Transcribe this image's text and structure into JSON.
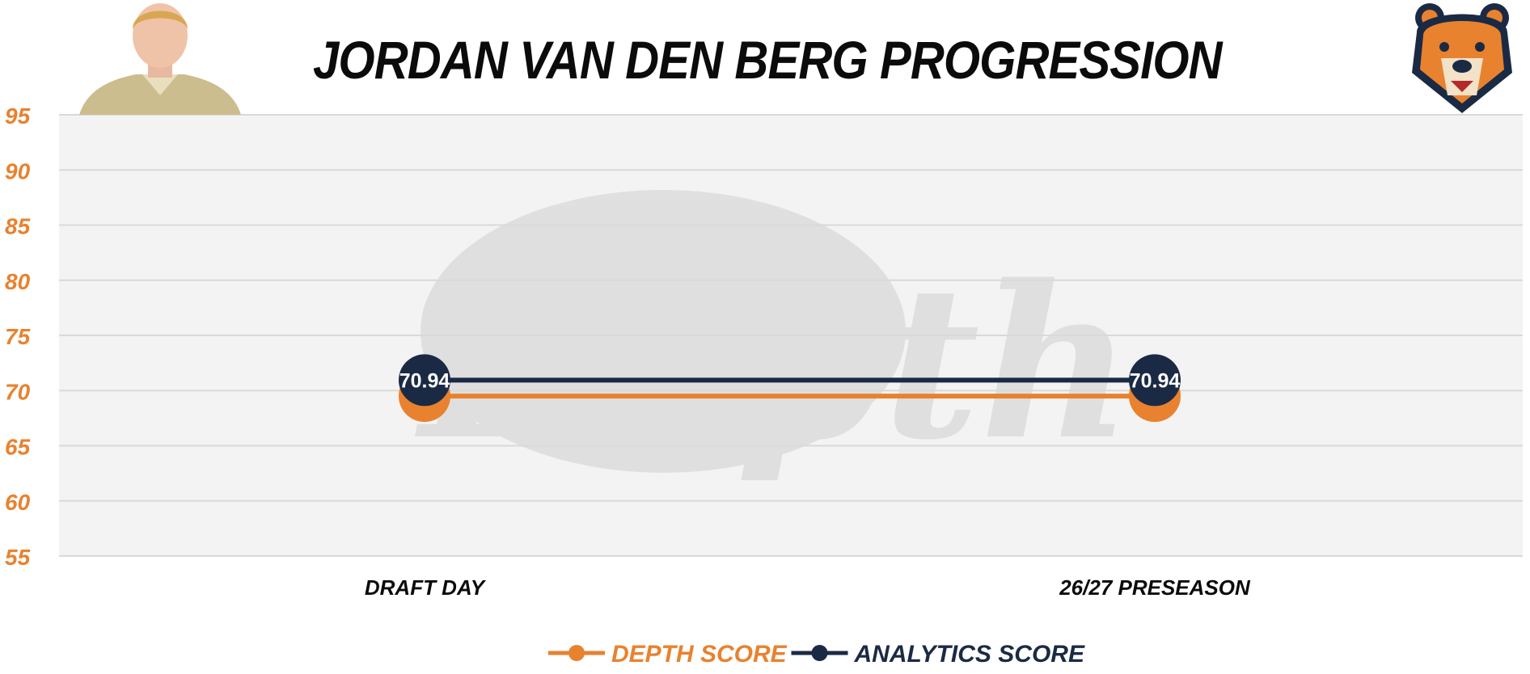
{
  "header": {
    "title": "JORDAN VAN DEN BERG PROGRESSION",
    "player_photo_icon": "player-headshot",
    "team_logo_icon": "bear-logo",
    "watermark_icon": "depth-watermark-logo"
  },
  "colors": {
    "depth": "#e8822f",
    "analytics": "#1b2a44",
    "plot_bg": "#f3f3f3",
    "grid": "#d9d9d9",
    "ytick": "#e8822f",
    "xtick": "#0b0b0b"
  },
  "chart_data": {
    "type": "line",
    "title": "JORDAN VAN DEN BERG PROGRESSION",
    "xlabel": "",
    "ylabel": "",
    "categories": [
      "DRAFT DAY",
      "26/27 PRESEASON"
    ],
    "yticks": [
      55,
      60,
      65,
      70,
      75,
      80,
      85,
      90,
      95
    ],
    "ylim": [
      55,
      95
    ],
    "grid": true,
    "legend_position": "bottom-center",
    "series": [
      {
        "name": "DEPTH SCORE",
        "values": [
          69.5,
          69.5
        ],
        "labels": [
          "",
          ""
        ],
        "color": "#e8822f"
      },
      {
        "name": "ANALYTICS SCORE",
        "values": [
          70.94,
          70.94
        ],
        "labels": [
          "70.94",
          "70.94"
        ],
        "color": "#1b2a44"
      }
    ]
  }
}
